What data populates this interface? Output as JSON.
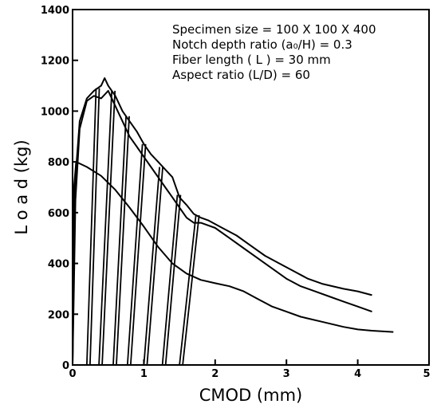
{
  "chart_data": {
    "type": "line",
    "xlabel": "CMOD  (mm)",
    "ylabel": "L o a d   (kg)",
    "xlim": [
      0,
      5
    ],
    "ylim": [
      0,
      1400
    ],
    "x_ticks": [
      "0",
      "1",
      "2",
      "3",
      "4",
      "5"
    ],
    "y_ticks": [
      "0",
      "200",
      "400",
      "600",
      "800",
      "1000",
      "1200",
      "1400"
    ],
    "grid": false,
    "annotations": [
      "Specimen size = 100 X 100 X 400",
      "Notch depth ratio (a₀/H) = 0.3",
      "Fiber length ( L ) = 30 mm",
      "Aspect ratio (L/D) = 60"
    ],
    "series": [
      {
        "points": [
          [
            0,
            0
          ],
          [
            0.02,
            700
          ],
          [
            0.05,
            800
          ],
          [
            0.2,
            780
          ],
          [
            0.4,
            745
          ],
          [
            0.6,
            690
          ],
          [
            0.8,
            620
          ],
          [
            1.0,
            545
          ],
          [
            1.2,
            465
          ],
          [
            1.4,
            400
          ],
          [
            1.6,
            360
          ],
          [
            1.8,
            335
          ],
          [
            2.0,
            322
          ],
          [
            2.2,
            310
          ],
          [
            2.4,
            290
          ],
          [
            2.6,
            260
          ],
          [
            2.8,
            230
          ],
          [
            3.0,
            210
          ],
          [
            3.2,
            190
          ],
          [
            3.5,
            170
          ],
          [
            3.8,
            150
          ],
          [
            4.0,
            140
          ],
          [
            4.2,
            135
          ],
          [
            4.5,
            130
          ]
        ]
      },
      {
        "points": [
          [
            0,
            0
          ],
          [
            0.03,
            700
          ],
          [
            0.1,
            960
          ],
          [
            0.2,
            1050
          ],
          [
            0.3,
            1080
          ],
          [
            0.4,
            1100
          ],
          [
            0.45,
            1130
          ],
          [
            0.5,
            1100
          ],
          [
            0.6,
            1060
          ],
          [
            0.7,
            1000
          ],
          [
            0.8,
            960
          ],
          [
            0.9,
            920
          ],
          [
            1.0,
            870
          ],
          [
            1.1,
            830
          ],
          [
            1.2,
            800
          ],
          [
            1.3,
            770
          ],
          [
            1.4,
            740
          ],
          [
            1.5,
            660
          ],
          [
            1.6,
            630
          ],
          [
            1.7,
            595
          ],
          [
            1.8,
            580
          ],
          [
            1.9,
            570
          ],
          [
            2.1,
            540
          ],
          [
            2.3,
            510
          ],
          [
            2.5,
            470
          ],
          [
            2.7,
            430
          ],
          [
            2.9,
            400
          ],
          [
            3.1,
            370
          ],
          [
            3.3,
            340
          ],
          [
            3.5,
            320
          ],
          [
            3.8,
            300
          ],
          [
            4.0,
            290
          ],
          [
            4.2,
            275
          ]
        ]
      },
      {
        "points": [
          [
            0,
            0
          ],
          [
            0.04,
            650
          ],
          [
            0.1,
            930
          ],
          [
            0.2,
            1040
          ],
          [
            0.3,
            1060
          ],
          [
            0.4,
            1050
          ],
          [
            0.5,
            1080
          ],
          [
            0.6,
            1020
          ],
          [
            0.7,
            960
          ],
          [
            0.8,
            900
          ],
          [
            0.9,
            860
          ],
          [
            1.0,
            820
          ],
          [
            1.1,
            780
          ],
          [
            1.2,
            740
          ],
          [
            1.3,
            700
          ],
          [
            1.4,
            660
          ],
          [
            1.5,
            620
          ],
          [
            1.6,
            580
          ],
          [
            1.7,
            560
          ],
          [
            1.8,
            560
          ],
          [
            2.0,
            540
          ],
          [
            2.2,
            500
          ],
          [
            2.4,
            460
          ],
          [
            2.6,
            420
          ],
          [
            2.8,
            380
          ],
          [
            3.0,
            340
          ],
          [
            3.2,
            310
          ],
          [
            3.4,
            290
          ],
          [
            3.6,
            270
          ],
          [
            3.8,
            250
          ],
          [
            4.0,
            230
          ],
          [
            4.2,
            210
          ]
        ]
      }
    ],
    "unloading_cycles": [
      {
        "x0": 0.2,
        "x_peak": 0.33,
        "y_peak": 1090
      },
      {
        "x0": 0.37,
        "x_peak": 0.55,
        "y_peak": 1080
      },
      {
        "x0": 0.57,
        "x_peak": 0.75,
        "y_peak": 980
      },
      {
        "x0": 0.77,
        "x_peak": 0.98,
        "y_peak": 870
      },
      {
        "x0": 1.0,
        "x_peak": 1.22,
        "y_peak": 780
      },
      {
        "x0": 1.26,
        "x_peak": 1.47,
        "y_peak": 670
      },
      {
        "x0": 1.5,
        "x_peak": 1.73,
        "y_peak": 590
      }
    ]
  }
}
